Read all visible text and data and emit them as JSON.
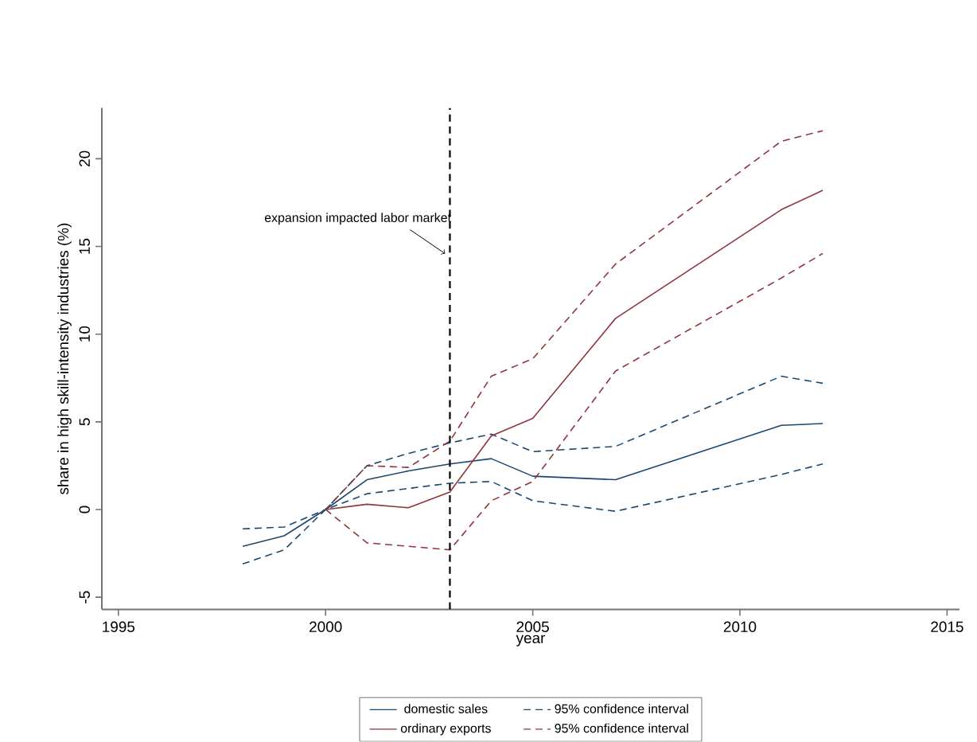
{
  "chart_data": {
    "type": "line",
    "xlabel": "year",
    "ylabel": "share in high skill-intensity industries (%)",
    "x": [
      1998,
      1999,
      2000,
      2001,
      2002,
      2003,
      2004,
      2005,
      2007,
      2011,
      2012
    ],
    "series": [
      {
        "name": "domestic sales",
        "color": "#1a476f",
        "line_style": "solid",
        "values": [
          -2.1,
          -1.5,
          0,
          1.7,
          2.2,
          2.6,
          2.9,
          1.9,
          1.7,
          4.8,
          4.9
        ]
      },
      {
        "name": "95% confidence interval",
        "color": "#1a476f",
        "line_style": "dashed",
        "values": [
          -1.1,
          -1.0,
          0,
          2.5,
          3.2,
          3.8,
          4.3,
          3.3,
          3.6,
          7.6,
          7.2
        ]
      },
      {
        "name": "ordinary exports",
        "color": "#90353b",
        "line_style": "solid",
        "values": [
          null,
          null,
          0,
          0.3,
          0.1,
          1.0,
          4.2,
          5.2,
          10.9,
          17.1,
          18.2
        ]
      },
      {
        "name": "95% confidence interval",
        "color": "#90353b",
        "line_style": "dashed",
        "values": [
          null,
          null,
          0,
          2.5,
          2.4,
          3.9,
          7.6,
          8.6,
          14.0,
          21.0,
          21.6
        ]
      },
      {
        "color": "#1a476f",
        "line_style": "dashed",
        "values": [
          -3.1,
          -2.3,
          0,
          0.9,
          1.2,
          1.5,
          1.6,
          0.5,
          -0.1,
          2.0,
          2.6
        ]
      },
      {
        "color": "#90353b",
        "line_style": "dashed",
        "values": [
          null,
          null,
          0,
          -1.9,
          -2.1,
          -2.3,
          0.5,
          1.6,
          7.9,
          13.2,
          14.6
        ]
      }
    ],
    "xlim": [
      1994.6,
      2015.3
    ],
    "xticks": [
      1995,
      2000,
      2005,
      2010,
      2015
    ],
    "ylim": [
      -5.7,
      22.9
    ],
    "yticks": [
      -5,
      0,
      5,
      10,
      15,
      20
    ],
    "ref_lines": [
      {
        "axis": "x",
        "value": 2003,
        "color": "#000000",
        "line_style": "dashed"
      }
    ],
    "annotations": [
      {
        "text": "expansion impacted labor market",
        "x": 2003,
        "y": 14.5
      }
    ],
    "grid": false,
    "legend": "bottom"
  }
}
